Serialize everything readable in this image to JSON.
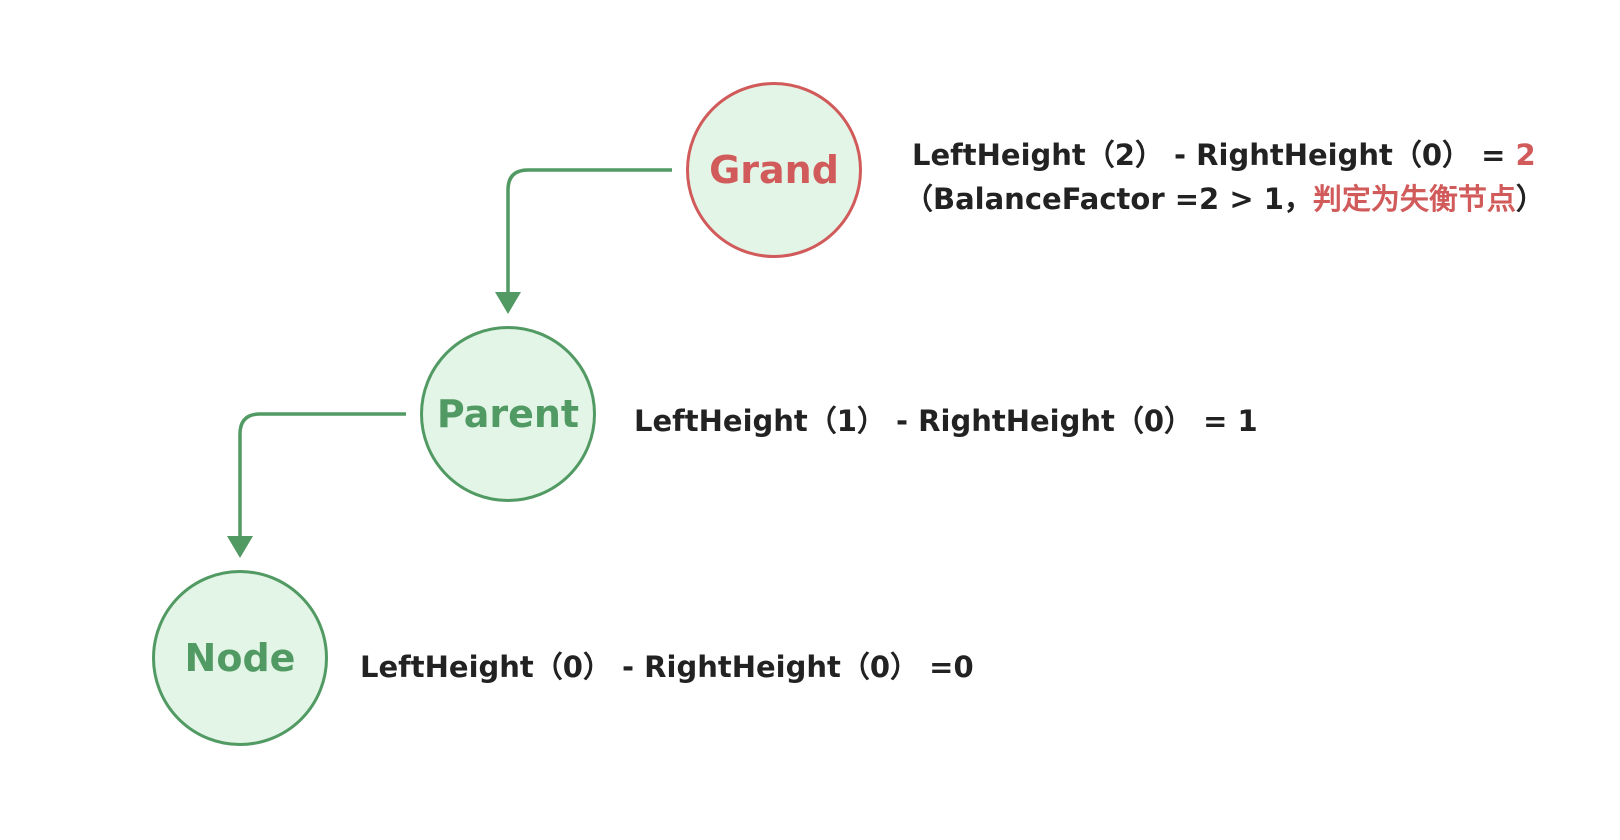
{
  "colors": {
    "edge": "#529a63",
    "node_fill": "#e3f5e6",
    "node_border": "#529a63",
    "unbalanced": "#d15a5a",
    "text": "#222222"
  },
  "nodes": {
    "grand": {
      "label": "Grand",
      "state": "unbalanced"
    },
    "parent": {
      "label": "Parent",
      "state": "balanced"
    },
    "node": {
      "label": "Node",
      "state": "balanced"
    }
  },
  "annotations": {
    "grand": {
      "formula": "LeftHeight（2） - RightHeight（0） = ",
      "result": "2",
      "note_open": "（BalanceFactor =2 > 1，",
      "note_highlight": "判定为失衡节点",
      "note_close": "）"
    },
    "parent": {
      "formula": "LeftHeight（1） - RightHeight（0） = 1"
    },
    "node": {
      "formula": "LeftHeight（0） - RightHeight（0） =0"
    }
  }
}
